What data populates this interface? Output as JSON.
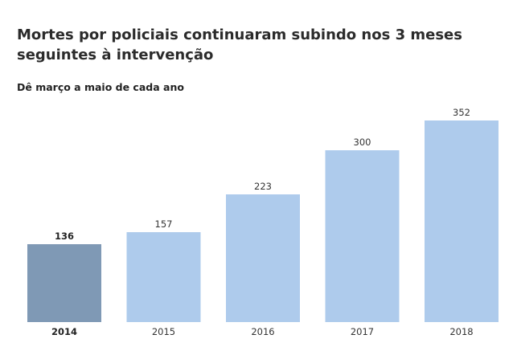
{
  "title": "Mortes por policiais continuaram subindo nos 3 meses seguintes à intervenção",
  "subtitle": "Dê março a maio de cada ano",
  "chart_data": {
    "type": "bar",
    "categories": [
      "2014",
      "2015",
      "2016",
      "2017",
      "2018"
    ],
    "values": [
      136,
      157,
      223,
      300,
      352
    ],
    "highlight_index": 0,
    "title": "Mortes por policiais continuaram subindo nos 3 meses seguintes à intervenção",
    "subtitle": "Dê março a maio de cada ano",
    "xlabel": "",
    "ylabel": "",
    "ylim": [
      0,
      352
    ],
    "grid": false,
    "data_labels": true,
    "colors": {
      "highlight": "#7f99b5",
      "default": "#aecbec"
    }
  }
}
